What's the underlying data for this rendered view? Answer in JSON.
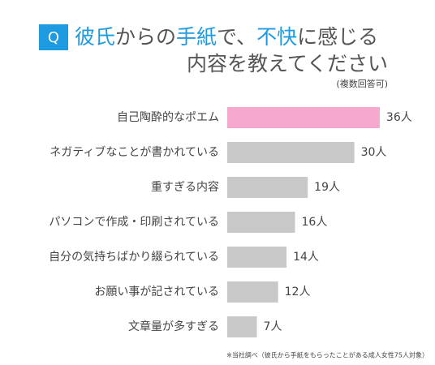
{
  "chart_data": {
    "type": "barh",
    "badge": "Q",
    "title_lines": [
      [
        {
          "text": "彼氏",
          "highlight": true
        },
        {
          "text": "からの",
          "highlight": false
        },
        {
          "text": "手紙",
          "highlight": true
        },
        {
          "text": "で、",
          "highlight": false
        },
        {
          "text": "不快",
          "highlight": true
        },
        {
          "text": "に感じる",
          "highlight": false
        }
      ],
      [
        {
          "text": "内容を教えてください",
          "highlight": false
        }
      ]
    ],
    "subtitle": "(複数回答可)",
    "highlight_color": "#1e9be0",
    "text_color": "#555555",
    "categories": [
      "自己陶酔的なポエム",
      "ネガティブなことが書かれている",
      "重すぎる内容",
      "パソコンで作成・印刷されている",
      "自分の気持ちばかり綴られている",
      "お願い事が記されている",
      "文章量が多すぎる"
    ],
    "values": [
      36,
      30,
      19,
      16,
      14,
      12,
      7
    ],
    "value_labels": [
      "36人",
      "30人",
      "19人",
      "16人",
      "14人",
      "12人",
      "7人"
    ],
    "colors": [
      "#f7a8cf",
      "#c8c8c8",
      "#c8c8c8",
      "#c8c8c8",
      "#c8c8c8",
      "#c8c8c8",
      "#c8c8c8"
    ],
    "footnote": "※当社調べ（彼氏から手紙をもらったことがある成人女性75人対象）"
  }
}
